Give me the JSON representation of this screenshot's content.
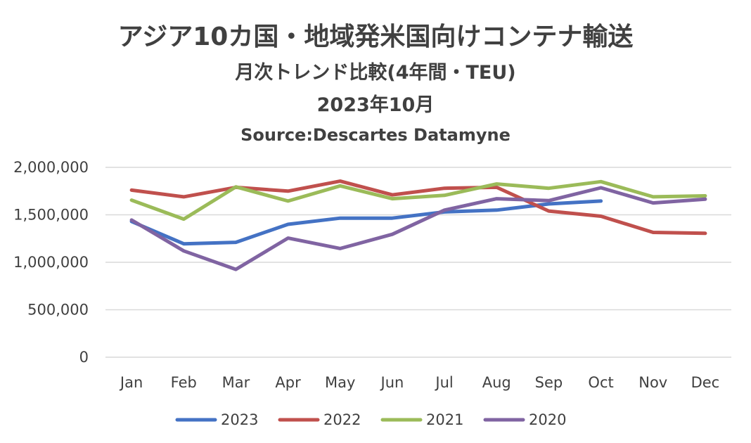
{
  "chart_data": {
    "type": "line",
    "title": "アジア10カ国・地域発米国向けコンテナ輸送",
    "subtitle": "月次トレンド比較(4年間・TEU)",
    "date_label": "2023年10月",
    "source": "Source:Descartes Datamyne",
    "categories": [
      "Jan",
      "Feb",
      "Mar",
      "Apr",
      "May",
      "Jun",
      "Jul",
      "Aug",
      "Sep",
      "Oct",
      "Nov",
      "Dec"
    ],
    "ylim": [
      0,
      2000000
    ],
    "yticks": [
      0,
      500000,
      1000000,
      1500000,
      2000000
    ],
    "ytick_labels": [
      "0",
      "500,000",
      "1,000,000",
      "1,500,000",
      "2,000,000"
    ],
    "grid": true,
    "legend": "bottom",
    "series": [
      {
        "name": "2023",
        "color": "#4472c4",
        "values": [
          1430000,
          1195000,
          1210000,
          1400000,
          1465000,
          1465000,
          1530000,
          1550000,
          1615000,
          1645000,
          null,
          null
        ]
      },
      {
        "name": "2022",
        "color": "#c0504d",
        "values": [
          1760000,
          1690000,
          1790000,
          1750000,
          1855000,
          1710000,
          1780000,
          1790000,
          1540000,
          1485000,
          1315000,
          1305000
        ]
      },
      {
        "name": "2021",
        "color": "#9bbb59",
        "values": [
          1655000,
          1455000,
          1795000,
          1645000,
          1805000,
          1670000,
          1705000,
          1825000,
          1780000,
          1850000,
          1690000,
          1700000
        ]
      },
      {
        "name": "2020",
        "color": "#8064a2",
        "values": [
          1445000,
          1120000,
          925000,
          1255000,
          1145000,
          1295000,
          1550000,
          1670000,
          1650000,
          1785000,
          1625000,
          1665000
        ]
      }
    ]
  }
}
